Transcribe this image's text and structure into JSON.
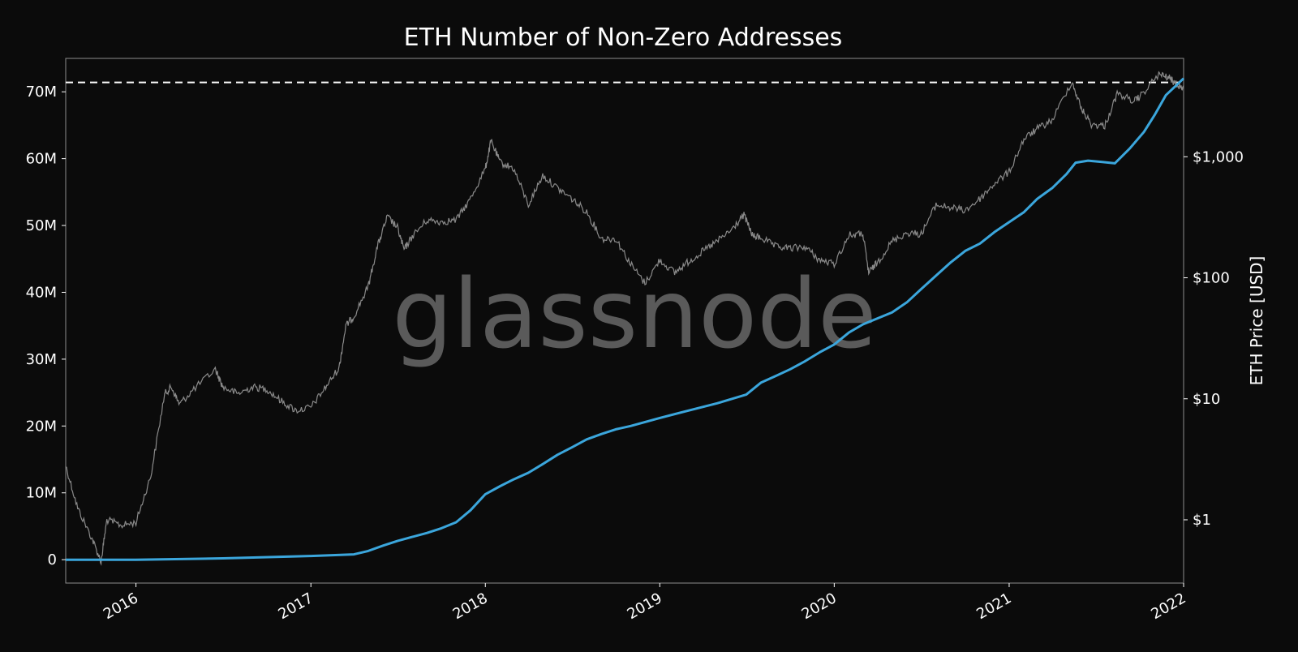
{
  "chart_data": {
    "type": "line",
    "title": "ETH Number of Non-Zero Addresses",
    "watermark": "glassnode",
    "colors": {
      "background": "#0b0b0b",
      "addresses": "#3ba6dc",
      "price": "#8a8a8a",
      "ath_line": "#ffffff",
      "text": "#ffffff",
      "frame": "#8c8c8c"
    },
    "x_axis": {
      "range": [
        "2015-08-07",
        "2022-01-01"
      ],
      "ticks": [
        "2016-01-01",
        "2017-01-01",
        "2018-01-01",
        "2019-01-01",
        "2020-01-01",
        "2021-01-01",
        "2022-01-01"
      ],
      "tick_labels": [
        "2016",
        "2017",
        "2018",
        "2019",
        "2020",
        "2021",
        "2022"
      ]
    },
    "y_left": {
      "label": "",
      "range": [
        -3500000,
        75000000
      ],
      "ticks": [
        0,
        10000000,
        20000000,
        30000000,
        40000000,
        50000000,
        60000000,
        70000000
      ],
      "tick_labels": [
        "0",
        "10M",
        "20M",
        "30M",
        "40M",
        "50M",
        "60M",
        "70M"
      ]
    },
    "y_right": {
      "label": "ETH Price [USD]",
      "scale": "log",
      "range": [
        0.3,
        6500
      ],
      "ticks": [
        1,
        10,
        100,
        1000
      ],
      "tick_labels": [
        "$1",
        "$10",
        "$100",
        "$1,000"
      ]
    },
    "ath_level": 71400000,
    "series": [
      {
        "axis": "left",
        "points": [
          [
            "2015-08-07",
            0
          ],
          [
            "2016-01-01",
            0
          ],
          [
            "2016-07-01",
            200000
          ],
          [
            "2017-01-01",
            550000
          ],
          [
            "2017-04-01",
            800000
          ],
          [
            "2017-05-01",
            1300000
          ],
          [
            "2017-06-01",
            2100000
          ],
          [
            "2017-07-01",
            2800000
          ],
          [
            "2017-08-01",
            3400000
          ],
          [
            "2017-09-01",
            4000000
          ],
          [
            "2017-10-01",
            4700000
          ],
          [
            "2017-11-01",
            5600000
          ],
          [
            "2017-12-01",
            7400000
          ],
          [
            "2018-01-01",
            9800000
          ],
          [
            "2018-02-01",
            11000000
          ],
          [
            "2018-03-01",
            12000000
          ],
          [
            "2018-04-01",
            13000000
          ],
          [
            "2018-05-01",
            14300000
          ],
          [
            "2018-06-01",
            15700000
          ],
          [
            "2018-07-01",
            16800000
          ],
          [
            "2018-08-01",
            18000000
          ],
          [
            "2018-09-01",
            18800000
          ],
          [
            "2018-10-01",
            19500000
          ],
          [
            "2018-11-01",
            20000000
          ],
          [
            "2019-01-01",
            21200000
          ],
          [
            "2019-03-01",
            22300000
          ],
          [
            "2019-05-01",
            23400000
          ],
          [
            "2019-07-01",
            24700000
          ],
          [
            "2019-08-01",
            26500000
          ],
          [
            "2019-09-01",
            27500000
          ],
          [
            "2019-10-01",
            28500000
          ],
          [
            "2019-11-01",
            29700000
          ],
          [
            "2019-12-01",
            31000000
          ],
          [
            "2020-01-01",
            32200000
          ],
          [
            "2020-02-01",
            34000000
          ],
          [
            "2020-03-01",
            35200000
          ],
          [
            "2020-05-01",
            37000000
          ],
          [
            "2020-06-01",
            38500000
          ],
          [
            "2020-07-01",
            40500000
          ],
          [
            "2020-08-01",
            42500000
          ],
          [
            "2020-09-01",
            44500000
          ],
          [
            "2020-10-01",
            46200000
          ],
          [
            "2020-11-01",
            47300000
          ],
          [
            "2020-12-01",
            49000000
          ],
          [
            "2021-01-01",
            50500000
          ],
          [
            "2021-02-01",
            52000000
          ],
          [
            "2021-03-01",
            54000000
          ],
          [
            "2021-04-01",
            55600000
          ],
          [
            "2021-05-01",
            57700000
          ],
          [
            "2021-05-20",
            59400000
          ],
          [
            "2021-06-15",
            59700000
          ],
          [
            "2021-07-15",
            59500000
          ],
          [
            "2021-08-10",
            59300000
          ],
          [
            "2021-09-10",
            61500000
          ],
          [
            "2021-10-10",
            64000000
          ],
          [
            "2021-11-01",
            66500000
          ],
          [
            "2021-11-25",
            69500000
          ],
          [
            "2022-01-01",
            72000000
          ]
        ]
      },
      {
        "axis": "right",
        "points": [
          [
            "2015-08-07",
            2.8
          ],
          [
            "2015-09-01",
            1.25
          ],
          [
            "2015-10-01",
            0.7
          ],
          [
            "2015-10-20",
            0.45
          ],
          [
            "2015-11-01",
            1.0
          ],
          [
            "2015-12-01",
            0.9
          ],
          [
            "2016-01-01",
            0.95
          ],
          [
            "2016-02-01",
            2.3
          ],
          [
            "2016-03-01",
            11.0
          ],
          [
            "2016-03-15",
            12.5
          ],
          [
            "2016-04-01",
            9.0
          ],
          [
            "2016-05-01",
            12.0
          ],
          [
            "2016-06-15",
            17.5
          ],
          [
            "2016-07-01",
            12.5
          ],
          [
            "2016-08-01",
            11.0
          ],
          [
            "2016-09-01",
            12.5
          ],
          [
            "2016-10-01",
            12.0
          ],
          [
            "2016-11-01",
            9.5
          ],
          [
            "2016-12-01",
            8.0
          ],
          [
            "2017-01-01",
            8.5
          ],
          [
            "2017-02-01",
            12.5
          ],
          [
            "2017-03-01",
            18.0
          ],
          [
            "2017-03-15",
            40.0
          ],
          [
            "2017-04-01",
            48.0
          ],
          [
            "2017-05-01",
            85.0
          ],
          [
            "2017-05-20",
            180.0
          ],
          [
            "2017-06-10",
            320.0
          ],
          [
            "2017-07-01",
            260.0
          ],
          [
            "2017-07-15",
            170.0
          ],
          [
            "2017-08-01",
            220.0
          ],
          [
            "2017-09-01",
            300.0
          ],
          [
            "2017-10-01",
            290.0
          ],
          [
            "2017-11-01",
            300.0
          ],
          [
            "2017-12-01",
            450.0
          ],
          [
            "2018-01-01",
            800.0
          ],
          [
            "2018-01-13",
            1350.0
          ],
          [
            "2018-02-01",
            900.0
          ],
          [
            "2018-03-01",
            800.0
          ],
          [
            "2018-04-01",
            400.0
          ],
          [
            "2018-05-01",
            700.0
          ],
          [
            "2018-06-01",
            550.0
          ],
          [
            "2018-07-01",
            450.0
          ],
          [
            "2018-08-01",
            350.0
          ],
          [
            "2018-09-01",
            210.0
          ],
          [
            "2018-10-01",
            210.0
          ],
          [
            "2018-11-01",
            130.0
          ],
          [
            "2018-12-01",
            90.0
          ],
          [
            "2019-01-01",
            140.0
          ],
          [
            "2019-02-01",
            110.0
          ],
          [
            "2019-03-01",
            135.0
          ],
          [
            "2019-04-01",
            165.0
          ],
          [
            "2019-05-01",
            200.0
          ],
          [
            "2019-06-01",
            250.0
          ],
          [
            "2019-06-26",
            330.0
          ],
          [
            "2019-07-15",
            220.0
          ],
          [
            "2019-08-01",
            215.0
          ],
          [
            "2019-09-01",
            180.0
          ],
          [
            "2019-10-01",
            175.0
          ],
          [
            "2019-11-01",
            180.0
          ],
          [
            "2019-12-01",
            140.0
          ],
          [
            "2020-01-01",
            130.0
          ],
          [
            "2020-02-01",
            225.0
          ],
          [
            "2020-03-01",
            230.0
          ],
          [
            "2020-03-13",
            110.0
          ],
          [
            "2020-04-01",
            135.0
          ],
          [
            "2020-05-01",
            200.0
          ],
          [
            "2020-06-01",
            235.0
          ],
          [
            "2020-07-01",
            230.0
          ],
          [
            "2020-08-01",
            400.0
          ],
          [
            "2020-09-01",
            380.0
          ],
          [
            "2020-10-01",
            360.0
          ],
          [
            "2020-11-01",
            450.0
          ],
          [
            "2020-12-01",
            600.0
          ],
          [
            "2021-01-01",
            750.0
          ],
          [
            "2021-02-01",
            1400.0
          ],
          [
            "2021-03-01",
            1700.0
          ],
          [
            "2021-04-01",
            2000.0
          ],
          [
            "2021-05-12",
            4200.0
          ],
          [
            "2021-06-01",
            2500.0
          ],
          [
            "2021-06-22",
            1850.0
          ],
          [
            "2021-07-20",
            1800.0
          ],
          [
            "2021-08-15",
            3300.0
          ],
          [
            "2021-09-20",
            2900.0
          ],
          [
            "2021-10-01",
            3100.0
          ],
          [
            "2021-11-10",
            4800.0
          ],
          [
            "2021-12-01",
            4500.0
          ],
          [
            "2021-12-20",
            3900.0
          ],
          [
            "2022-01-01",
            3700.0
          ]
        ]
      }
    ]
  }
}
